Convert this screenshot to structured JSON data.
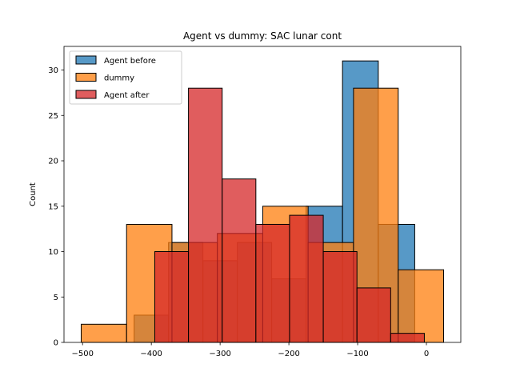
{
  "chart_data": {
    "type": "histogram",
    "title": "Agent vs dummy: SAC lunar cont",
    "xlabel": "",
    "ylabel": "Count",
    "xlim": [
      -527,
      50
    ],
    "ylim": [
      0,
      32.6
    ],
    "x_ticks": [
      -500,
      -400,
      -300,
      -200,
      -100,
      0
    ],
    "y_ticks": [
      0,
      5,
      10,
      15,
      20,
      25,
      30
    ],
    "grid": false,
    "legend_position": "top-left",
    "series": [
      {
        "name": "Agent before",
        "color": "#1f77b4",
        "alpha": 0.75,
        "bins": [
          {
            "x0": -425,
            "x1": -375,
            "count": 3
          },
          {
            "x0": -375,
            "x1": -325,
            "count": 11
          },
          {
            "x0": -325,
            "x1": -275,
            "count": 9
          },
          {
            "x0": -275,
            "x1": -225,
            "count": 11
          },
          {
            "x0": -225,
            "x1": -175,
            "count": 7
          },
          {
            "x0": -175,
            "x1": -122,
            "count": 15
          },
          {
            "x0": -122,
            "x1": -70,
            "count": 31
          },
          {
            "x0": -70,
            "x1": -17,
            "count": 13
          }
        ]
      },
      {
        "name": "dummy",
        "color": "#ff7f0e",
        "alpha": 0.75,
        "bins": [
          {
            "x0": -502,
            "x1": -436,
            "count": 2
          },
          {
            "x0": -436,
            "x1": -370,
            "count": 13
          },
          {
            "x0": -370,
            "x1": -304,
            "count": 11
          },
          {
            "x0": -304,
            "x1": -238,
            "count": 12
          },
          {
            "x0": -238,
            "x1": -172,
            "count": 15
          },
          {
            "x0": -172,
            "x1": -106,
            "count": 11
          },
          {
            "x0": -106,
            "x1": -41,
            "count": 28
          },
          {
            "x0": -41,
            "x1": 25,
            "count": 8
          }
        ]
      },
      {
        "name": "Agent after",
        "color": "#d62728",
        "alpha": 0.75,
        "bins": [
          {
            "x0": -395,
            "x1": -346,
            "count": 10
          },
          {
            "x0": -346,
            "x1": -297,
            "count": 28
          },
          {
            "x0": -297,
            "x1": -248,
            "count": 18
          },
          {
            "x0": -248,
            "x1": -199,
            "count": 13
          },
          {
            "x0": -199,
            "x1": -150,
            "count": 14
          },
          {
            "x0": -150,
            "x1": -101,
            "count": 10
          },
          {
            "x0": -101,
            "x1": -52,
            "count": 6
          },
          {
            "x0": -52,
            "x1": -3,
            "count": 1
          }
        ]
      }
    ]
  }
}
